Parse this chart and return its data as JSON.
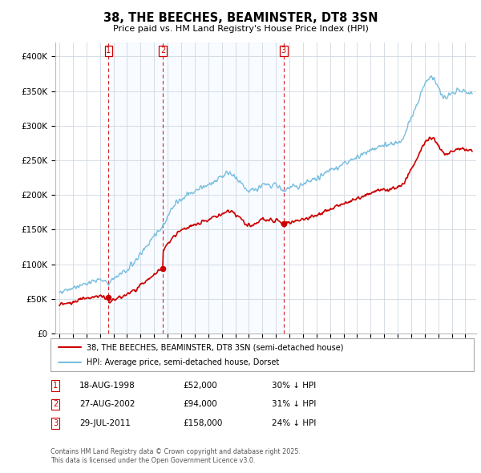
{
  "title": "38, THE BEECHES, BEAMINSTER, DT8 3SN",
  "subtitle": "Price paid vs. HM Land Registry's House Price Index (HPI)",
  "legend_line1": "38, THE BEECHES, BEAMINSTER, DT8 3SN (semi-detached house)",
  "legend_line2": "HPI: Average price, semi-detached house, Dorset",
  "footer1": "Contains HM Land Registry data © Crown copyright and database right 2025.",
  "footer2": "This data is licensed under the Open Government Licence v3.0.",
  "sale_points": [
    {
      "label": "1",
      "date_x": 1998.63,
      "price": 52000,
      "date_str": "18-AUG-1998",
      "price_str": "£52,000",
      "hpi_str": "30% ↓ HPI"
    },
    {
      "label": "2",
      "date_x": 2002.65,
      "price": 94000,
      "date_str": "27-AUG-2002",
      "price_str": "£94,000",
      "hpi_str": "31% ↓ HPI"
    },
    {
      "label": "3",
      "date_x": 2011.57,
      "price": 158000,
      "date_str": "29-JUL-2011",
      "price_str": "£158,000",
      "hpi_str": "24% ↓ HPI"
    }
  ],
  "vline_color": "#cc0000",
  "shade_color": "#ddeeff",
  "hpi_color": "#7abfdf",
  "price_color": "#cc0000",
  "ylim": [
    0,
    420000
  ],
  "yticks": [
    0,
    50000,
    100000,
    150000,
    200000,
    250000,
    300000,
    350000,
    400000
  ],
  "xlim": [
    1994.7,
    2025.8
  ],
  "xtick_years": [
    1995,
    1996,
    1997,
    1998,
    1999,
    2000,
    2001,
    2002,
    2003,
    2004,
    2005,
    2006,
    2007,
    2008,
    2009,
    2010,
    2011,
    2012,
    2013,
    2014,
    2015,
    2016,
    2017,
    2018,
    2019,
    2020,
    2021,
    2022,
    2023,
    2024,
    2025
  ],
  "background_color": "#ffffff",
  "grid_color": "#d0d8e0"
}
